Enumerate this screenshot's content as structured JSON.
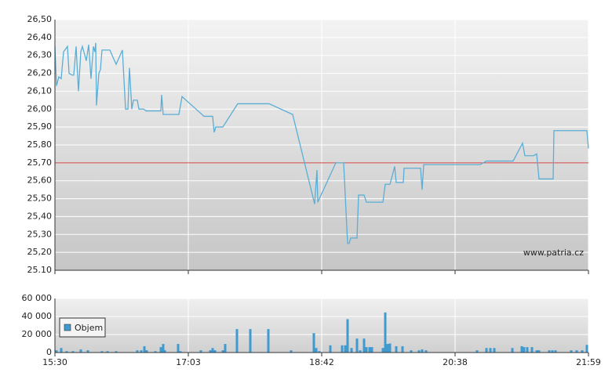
{
  "chart_data": [
    {
      "type": "line",
      "color": "#5aaed6",
      "grid": true,
      "watermark": "www.patria.cz",
      "reference_line": {
        "value": 25.7,
        "color": "#d04040"
      },
      "xlim": [
        0,
        680
      ],
      "ylim": [
        25.1,
        26.5
      ],
      "yticks": [
        {
          "value": 26.5,
          "label": "26,50"
        },
        {
          "value": 26.4,
          "label": "26,40"
        },
        {
          "value": 26.3,
          "label": "26,30"
        },
        {
          "value": 26.2,
          "label": "26,20"
        },
        {
          "value": 26.1,
          "label": "26,10"
        },
        {
          "value": 26.0,
          "label": "26,00"
        },
        {
          "value": 25.9,
          "label": "25,90"
        },
        {
          "value": 25.8,
          "label": "25,80"
        },
        {
          "value": 25.7,
          "label": "25,70"
        },
        {
          "value": 25.6,
          "label": "25,60"
        },
        {
          "value": 25.5,
          "label": "25,50"
        },
        {
          "value": 25.4,
          "label": "25,40"
        },
        {
          "value": 25.3,
          "label": "25,30"
        },
        {
          "value": 25.2,
          "label": "25,20"
        },
        {
          "value": 25.1,
          "label": "25.10"
        }
      ],
      "x": [
        0,
        2,
        5,
        8,
        11,
        16,
        18,
        22,
        24,
        27,
        30,
        33,
        35,
        40,
        43,
        46,
        49,
        51,
        52,
        53,
        56,
        58,
        60,
        70,
        78,
        86,
        90,
        93,
        95,
        98,
        100,
        105,
        107,
        113,
        116,
        135,
        136,
        138,
        158,
        162,
        190,
        201,
        203,
        205,
        214,
        233,
        273,
        303,
        331,
        334,
        335,
        358,
        368,
        373,
        375,
        377,
        385,
        387,
        394,
        397,
        418,
        421,
        427,
        433,
        435,
        444,
        445,
        466,
        468,
        470,
        542,
        550,
        584,
        596,
        599,
        610,
        614,
        617,
        635,
        636,
        678,
        680
      ],
      "values": [
        26.35,
        26.13,
        26.18,
        26.17,
        26.32,
        26.35,
        26.2,
        26.19,
        26.19,
        26.35,
        26.1,
        26.32,
        26.35,
        26.27,
        26.36,
        26.17,
        26.35,
        26.32,
        26.37,
        26.02,
        26.2,
        26.22,
        26.33,
        26.33,
        26.25,
        26.33,
        26.0,
        26.0,
        26.23,
        26.0,
        26.05,
        26.05,
        26.0,
        26.0,
        25.99,
        25.99,
        26.08,
        25.97,
        25.97,
        26.07,
        25.96,
        25.96,
        25.87,
        25.9,
        25.9,
        26.03,
        26.03,
        25.97,
        25.47,
        25.66,
        25.48,
        25.7,
        25.7,
        25.25,
        25.25,
        25.28,
        25.28,
        25.52,
        25.52,
        25.48,
        25.48,
        25.58,
        25.58,
        25.68,
        25.59,
        25.59,
        25.67,
        25.67,
        25.55,
        25.69,
        25.69,
        25.71,
        25.71,
        25.81,
        25.74,
        25.74,
        25.75,
        25.61,
        25.61,
        25.88,
        25.88,
        25.78
      ]
    },
    {
      "type": "bar",
      "grid": true,
      "legend": "upper left",
      "xlim": [
        0,
        680
      ],
      "ylim": [
        0,
        60000
      ],
      "yticks": [
        {
          "value": 60000,
          "label": "60 000"
        },
        {
          "value": 40000,
          "label": "40 000"
        },
        {
          "value": 20000,
          "label": "20 000"
        },
        0
      ],
      "xticks": [
        {
          "value": 0,
          "label": "15:30"
        },
        {
          "value": 170,
          "label": "17:03"
        },
        {
          "value": 340,
          "label": "18:42"
        },
        {
          "value": 510,
          "label": "20:38"
        },
        {
          "value": 680,
          "label": "21:59"
        }
      ],
      "series": [
        {
          "name": "Objem",
          "color": "#3f9ad0",
          "x": [
            2,
            8,
            15,
            23,
            33,
            42,
            60,
            67,
            78,
            105,
            110,
            114,
            117,
            128,
            135,
            138,
            140,
            157,
            160,
            186,
            198,
            201,
            204,
            214,
            217,
            232,
            249,
            272,
            301,
            330,
            333,
            337,
            351,
            366,
            370,
            373,
            378,
            385,
            389,
            394,
            397,
            401,
            404,
            418,
            421,
            424,
            427,
            435,
            443,
            454,
            464,
            468,
            473,
            538,
            550,
            555,
            560,
            583,
            595,
            598,
            602,
            608,
            614,
            617,
            630,
            634,
            638,
            658,
            665,
            672,
            678
          ],
          "values": [
            2500,
            5000,
            1500,
            1500,
            3500,
            2500,
            1500,
            1500,
            1500,
            2500,
            2500,
            7000,
            2500,
            1500,
            6000,
            9500,
            2500,
            9500,
            1500,
            2500,
            2500,
            5000,
            2500,
            2500,
            9500,
            26000,
            26000,
            26000,
            2500,
            21500,
            5000,
            1500,
            8000,
            8000,
            8000,
            37000,
            5000,
            15500,
            2500,
            15500,
            6000,
            6000,
            6000,
            5000,
            44500,
            9500,
            10000,
            7000,
            7000,
            2500,
            2500,
            3500,
            2500,
            2500,
            5000,
            5000,
            5000,
            5000,
            7000,
            6000,
            6000,
            6000,
            2500,
            2500,
            2500,
            2500,
            2500,
            2500,
            2500,
            2500,
            8500
          ]
        }
      ]
    }
  ]
}
